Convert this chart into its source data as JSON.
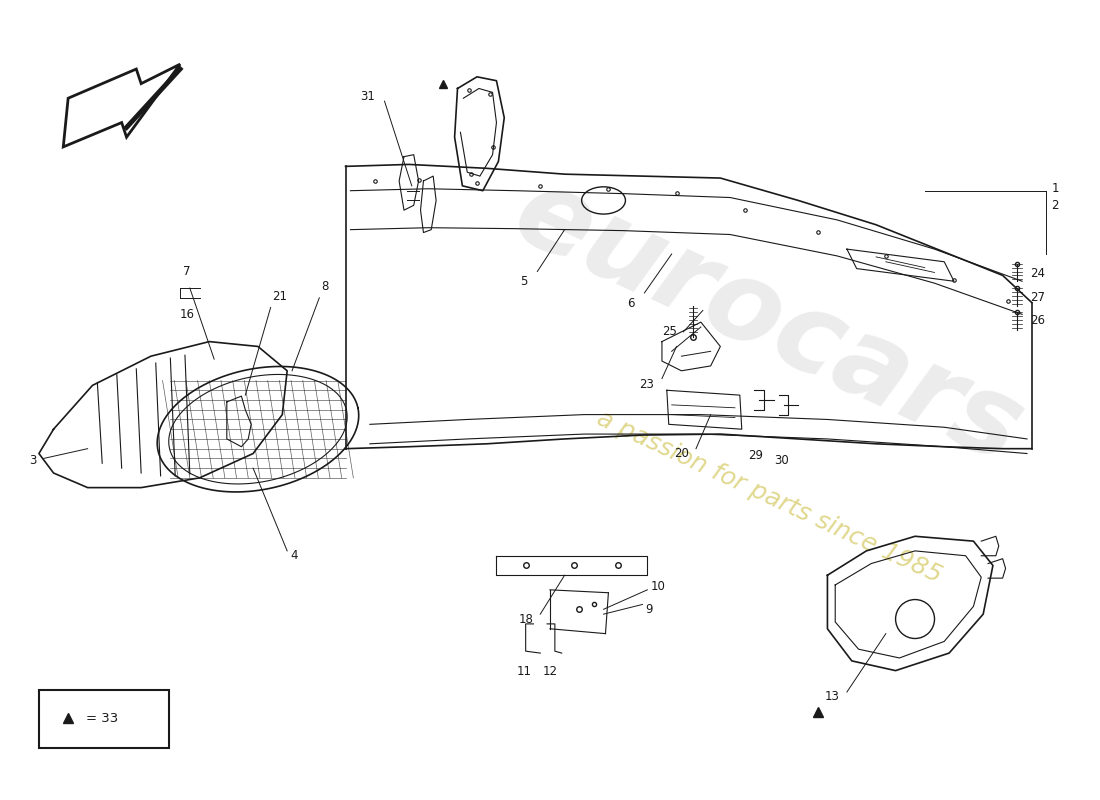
{
  "background_color": "#ffffff",
  "line_color": "#1a1a1a",
  "watermark_text1": "eurocars",
  "watermark_text2": "a passion for parts since 1985",
  "wm_color1": "#c0c0c0",
  "wm_color2": "#d4c060",
  "parts_layout": "front_bumper_exploded"
}
